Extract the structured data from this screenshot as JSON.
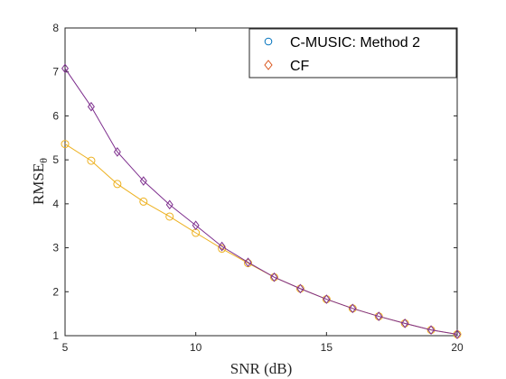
{
  "chart_data": {
    "type": "line",
    "title": "",
    "xlabel": "SNR  (dB)",
    "ylabel_main": "RMSE",
    "ylabel_sub": "θ",
    "xlim": [
      5,
      20
    ],
    "ylim": [
      1,
      8
    ],
    "xticks": [
      5,
      10,
      15,
      20
    ],
    "yticks": [
      1,
      2,
      3,
      4,
      5,
      6,
      7,
      8
    ],
    "grid": false,
    "legend_position": "top-right",
    "x": [
      5,
      6,
      7,
      8,
      9,
      10,
      11,
      12,
      13,
      14,
      15,
      16,
      17,
      18,
      19,
      20
    ],
    "series": [
      {
        "name": "C-MUSIC: Method 2",
        "marker": "circle",
        "legend_color": "#0072BD",
        "color": "#EDB120",
        "values": [
          5.36,
          4.98,
          4.45,
          4.05,
          3.71,
          3.34,
          2.98,
          2.65,
          2.33,
          2.07,
          1.83,
          1.62,
          1.44,
          1.28,
          1.13,
          1.03
        ]
      },
      {
        "name": "CF",
        "marker": "diamond",
        "legend_color": "#D95319",
        "color": "#7E2F8E",
        "values": [
          7.08,
          6.21,
          5.18,
          4.52,
          3.98,
          3.51,
          3.03,
          2.67,
          2.33,
          2.07,
          1.83,
          1.62,
          1.44,
          1.28,
          1.13,
          1.03
        ]
      }
    ]
  }
}
